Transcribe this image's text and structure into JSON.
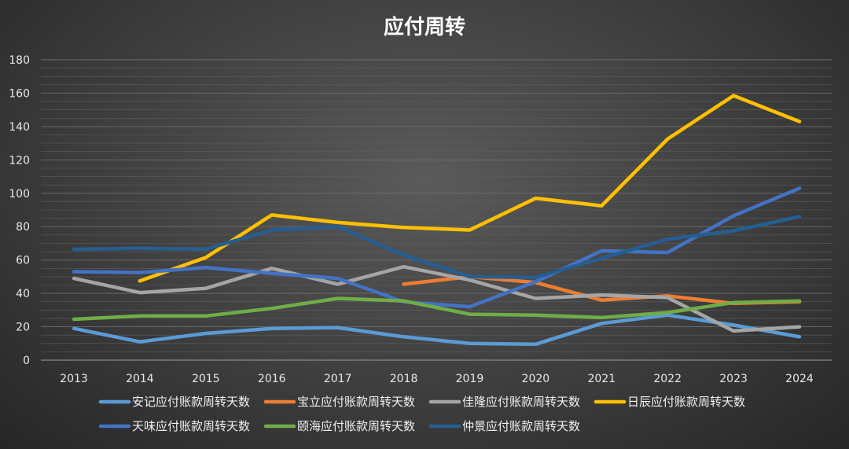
{
  "chart_data": {
    "type": "line",
    "title": "应付周转",
    "xlabel": "",
    "ylabel": "",
    "x": [
      "2013",
      "2014",
      "2015",
      "2016",
      "2017",
      "2018",
      "2019",
      "2020",
      "2021",
      "2022",
      "2023",
      "2024"
    ],
    "ylim": [
      0,
      180
    ],
    "yticks": [
      0,
      20,
      40,
      60,
      80,
      100,
      120,
      140,
      160,
      180
    ],
    "grid": true,
    "legend_position": "bottom",
    "series": [
      {
        "name": "安记应付账款周转天数",
        "color": "#5b9bd5",
        "values": [
          19,
          11,
          16,
          19,
          19.5,
          14,
          10,
          9.5,
          22,
          27,
          21,
          14
        ]
      },
      {
        "name": "宝立应付账款周转天数",
        "color": "#ed7d31",
        "values": [
          null,
          null,
          null,
          null,
          null,
          45.5,
          50,
          46.5,
          36,
          38.5,
          34,
          35
        ]
      },
      {
        "name": "佳隆应付账款周转天数",
        "color": "#a5a5a5",
        "values": [
          49,
          40.5,
          43,
          55,
          45.5,
          56,
          48,
          37,
          39,
          37.5,
          17.5,
          20
        ]
      },
      {
        "name": "日辰应付账款周转天数",
        "color": "#ffc000",
        "values": [
          null,
          47.5,
          61.5,
          87,
          82.5,
          79.5,
          78,
          97,
          92.5,
          132.5,
          158.5,
          143
        ]
      },
      {
        "name": "天味应付账款周转天数",
        "color": "#4472c4",
        "values": [
          53,
          52.5,
          55.5,
          52,
          49,
          35,
          32,
          47,
          65.5,
          64.5,
          86.5,
          103
        ]
      },
      {
        "name": "颐海应付账款周转天数",
        "color": "#70ad47",
        "values": [
          24.5,
          26.5,
          26.5,
          31,
          37,
          35.5,
          27.5,
          27,
          25.5,
          28.5,
          34.5,
          35.5
        ]
      },
      {
        "name": "仲景应付账款周转天数",
        "color": "#255e91",
        "values": [
          66.5,
          67,
          66.5,
          78,
          80,
          63,
          50,
          49.5,
          61,
          72.5,
          77.5,
          86
        ]
      }
    ]
  }
}
